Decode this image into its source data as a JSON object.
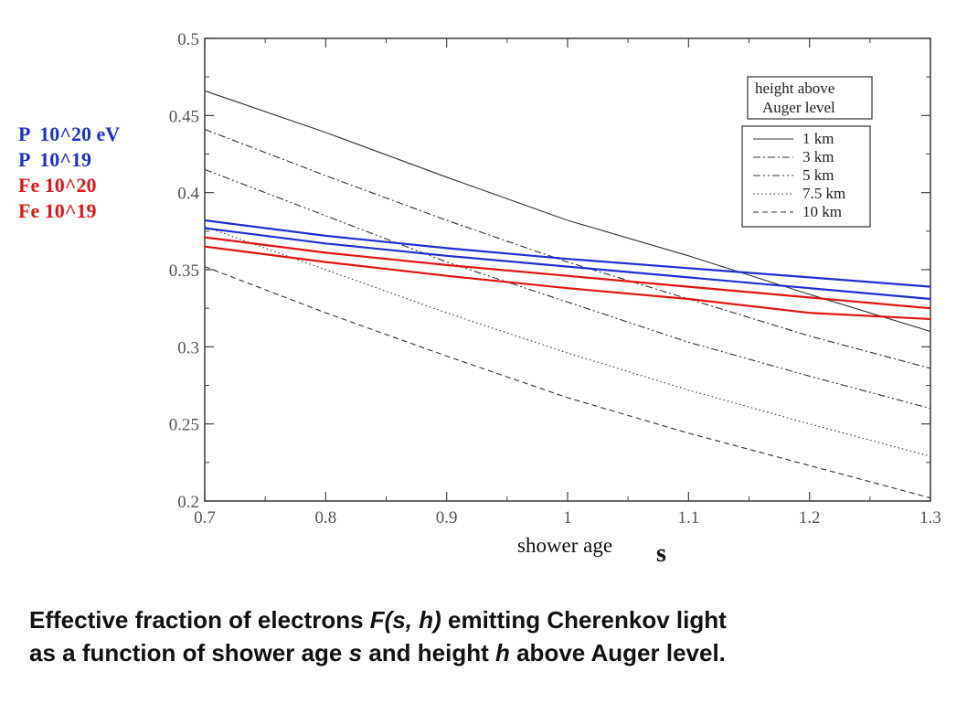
{
  "chart_data": {
    "type": "line",
    "xlabel": "shower age",
    "xlabel_symbol": "s",
    "xlim": [
      0.7,
      1.3
    ],
    "ylim": [
      0.2,
      0.5
    ],
    "x_ticks": [
      "0.7",
      "0.8",
      "0.9",
      "1",
      "1.1",
      "1.2",
      "1.3"
    ],
    "y_ticks": [
      "0.2",
      "0.25",
      "0.3",
      "0.35",
      "0.4",
      "0.45",
      "0.5"
    ],
    "grid": false,
    "legend": {
      "title_lines": [
        "height above",
        "Auger level"
      ],
      "placement": "top-right"
    },
    "series": [
      {
        "name": "1 km",
        "color": "#333333",
        "dash": "solid",
        "x": [
          0.7,
          0.8,
          0.9,
          1.0,
          1.1,
          1.2,
          1.3
        ],
        "y": [
          0.466,
          0.439,
          0.41,
          0.382,
          0.359,
          0.334,
          0.31
        ]
      },
      {
        "name": "3 km",
        "color": "#333333",
        "dash": "dashdot",
        "x": [
          0.7,
          0.8,
          0.9,
          1.0,
          1.1,
          1.2,
          1.3
        ],
        "y": [
          0.441,
          0.411,
          0.382,
          0.355,
          0.331,
          0.307,
          0.286
        ]
      },
      {
        "name": "5 km",
        "color": "#333333",
        "dash": "dashdotdot",
        "x": [
          0.7,
          0.8,
          0.9,
          1.0,
          1.1,
          1.2,
          1.3
        ],
        "y": [
          0.415,
          0.385,
          0.355,
          0.329,
          0.303,
          0.281,
          0.26
        ]
      },
      {
        "name": "7.5 km",
        "color": "#333333",
        "dash": "dotted",
        "x": [
          0.7,
          0.8,
          0.9,
          1.0,
          1.1,
          1.2,
          1.3
        ],
        "y": [
          0.378,
          0.35,
          0.322,
          0.296,
          0.272,
          0.25,
          0.229
        ]
      },
      {
        "name": "10 km",
        "color": "#333333",
        "dash": "dashed",
        "x": [
          0.7,
          0.8,
          0.9,
          1.0,
          1.1,
          1.2,
          1.3
        ],
        "y": [
          0.352,
          0.322,
          0.294,
          0.267,
          0.244,
          0.223,
          0.202
        ]
      },
      {
        "name": "P  10^20 eV",
        "color": "#1f2fd0",
        "dash": "solid",
        "x": [
          0.7,
          0.8,
          0.9,
          1.0,
          1.1,
          1.2,
          1.3
        ],
        "y": [
          0.382,
          0.372,
          0.364,
          0.357,
          0.351,
          0.345,
          0.339
        ]
      },
      {
        "name": "P  10^19",
        "color": "#1f2fd0",
        "dash": "solid",
        "x": [
          0.7,
          0.8,
          0.9,
          1.0,
          1.1,
          1.2,
          1.3
        ],
        "y": [
          0.377,
          0.367,
          0.359,
          0.352,
          0.345,
          0.338,
          0.331
        ]
      },
      {
        "name": "Fe 10^20",
        "color": "#e01515",
        "dash": "solid",
        "x": [
          0.7,
          0.8,
          0.9,
          1.0,
          1.1,
          1.2,
          1.3
        ],
        "y": [
          0.371,
          0.361,
          0.353,
          0.346,
          0.339,
          0.332,
          0.325
        ]
      },
      {
        "name": "Fe 10^19",
        "color": "#e01515",
        "dash": "solid",
        "x": [
          0.7,
          0.8,
          0.9,
          1.0,
          1.1,
          1.2,
          1.3
        ],
        "y": [
          0.365,
          0.355,
          0.346,
          0.338,
          0.331,
          0.322,
          0.318
        ]
      }
    ]
  },
  "side_legend": [
    {
      "label": "P  10^20 eV",
      "color": "#1f2fd0"
    },
    {
      "label": "P  10^19",
      "color": "#1f2fd0"
    },
    {
      "label": "Fe 10^20",
      "color": "#e01515"
    },
    {
      "label": "Fe 10^19",
      "color": "#e01515"
    }
  ],
  "caption": {
    "line1_a": "Effective fraction of electrons ",
    "line1_b": "F(s, h)",
    "line1_c": " emitting Cherenkov light",
    "line2_a": "as a function of shower age ",
    "line2_b": "s",
    "line2_c": " and height ",
    "line2_d": "h",
    "line2_e": " above Auger level."
  }
}
